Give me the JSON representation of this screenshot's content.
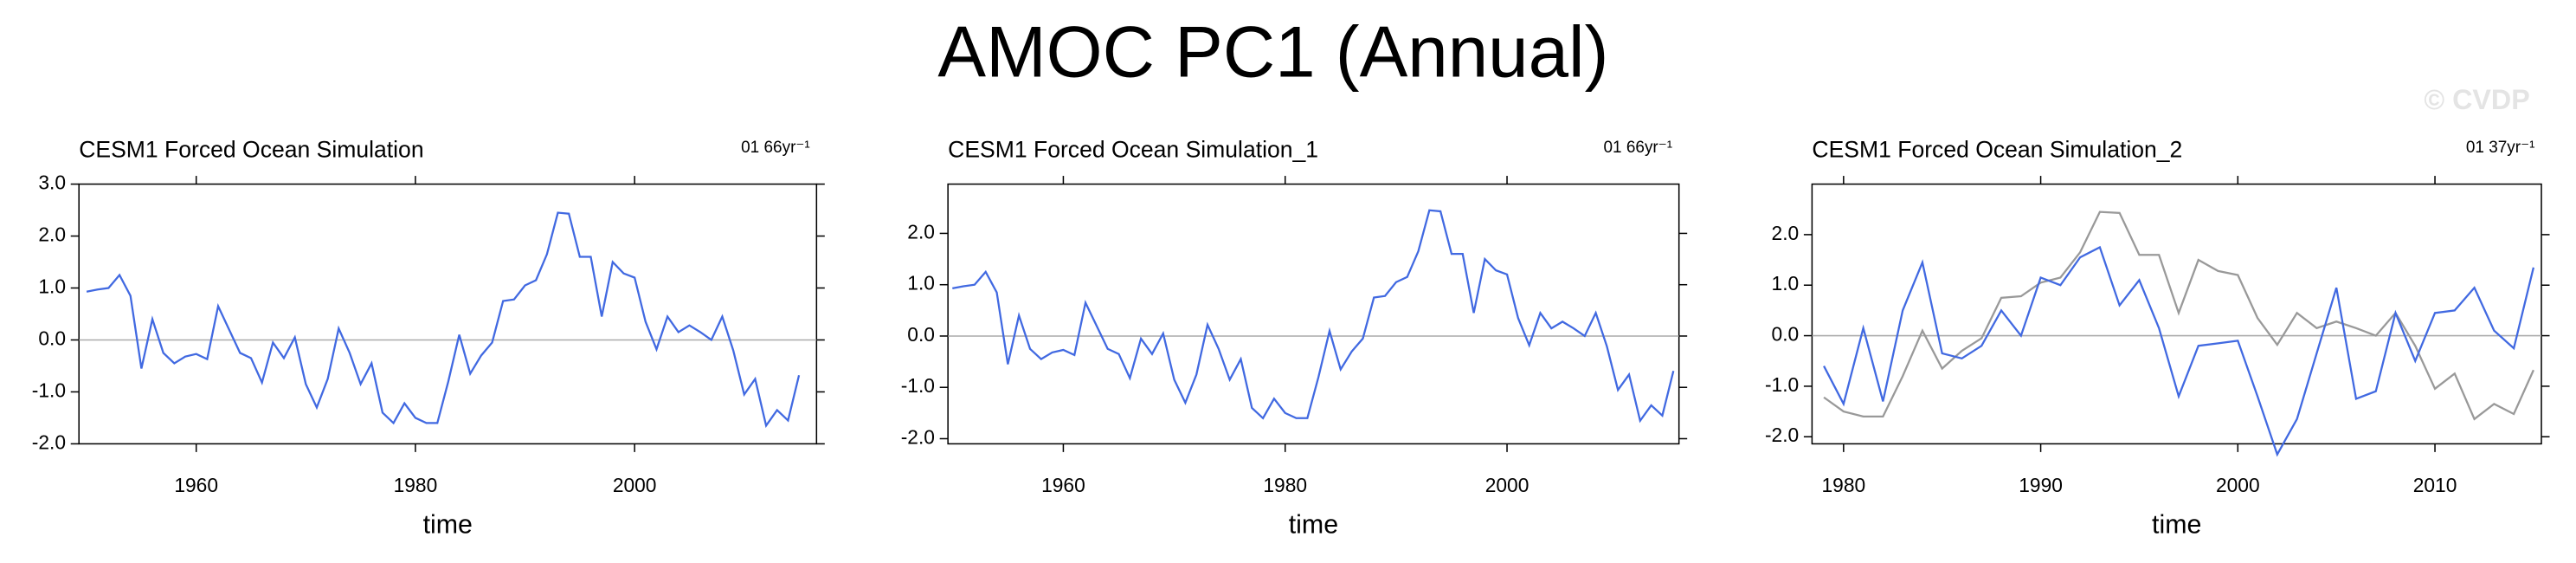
{
  "title": "AMOC PC1 (Annual)",
  "watermark": "© CVDP",
  "chart_data": [
    {
      "type": "line",
      "title": "CESM1 Forced Ocean Simulation",
      "trend_label": "01 66yr⁻¹",
      "xlabel": "time",
      "x": [
        1950,
        1951,
        1952,
        1953,
        1954,
        1955,
        1956,
        1957,
        1958,
        1959,
        1960,
        1961,
        1962,
        1963,
        1964,
        1965,
        1966,
        1967,
        1968,
        1969,
        1970,
        1971,
        1972,
        1973,
        1974,
        1975,
        1976,
        1977,
        1978,
        1979,
        1980,
        1981,
        1982,
        1983,
        1984,
        1985,
        1986,
        1987,
        1988,
        1989,
        1990,
        1991,
        1992,
        1993,
        1994,
        1995,
        1996,
        1997,
        1998,
        1999,
        2000,
        2001,
        2002,
        2003,
        2004,
        2005,
        2006,
        2007,
        2008,
        2009,
        2010,
        2011,
        2012,
        2013,
        2014,
        2015
      ],
      "series": [
        {
          "color": "#4169e1",
          "values": [
            0.93,
            0.97,
            1.0,
            1.25,
            0.85,
            -0.55,
            0.4,
            -0.25,
            -0.45,
            -0.32,
            -0.27,
            -0.37,
            0.65,
            0.2,
            -0.25,
            -0.35,
            -0.82,
            -0.05,
            -0.35,
            0.05,
            -0.85,
            -1.3,
            -0.75,
            0.22,
            -0.25,
            -0.85,
            -0.45,
            -1.4,
            -1.6,
            -1.22,
            -1.5,
            -1.6,
            -1.6,
            -0.8,
            0.1,
            -0.65,
            -0.3,
            -0.05,
            0.75,
            0.78,
            1.05,
            1.15,
            1.65,
            2.45,
            2.43,
            1.6,
            1.6,
            0.45,
            1.5,
            1.28,
            1.2,
            0.35,
            -0.18,
            0.45,
            0.15,
            0.28,
            0.15,
            0.0,
            0.45,
            -0.2,
            -1.05,
            -0.75,
            -1.65,
            -1.35,
            -1.55,
            -0.68
          ]
        }
      ],
      "xlim": [
        1949.3,
        2016.6
      ],
      "ylim": [
        -2.0,
        3.0
      ],
      "xticks": [
        1960,
        1980,
        2000
      ],
      "yticks": [
        {
          "value": 3.0,
          "label": "3.0"
        },
        {
          "value": 2.0,
          "label": "2.0"
        },
        {
          "value": 1.0,
          "label": "1.0"
        },
        {
          "value": 0,
          "label": "0.0"
        },
        {
          "value": -1.0,
          "label": "-1.0"
        },
        {
          "value": -2.0,
          "label": "-2.0"
        }
      ]
    },
    {
      "type": "line",
      "title": "CESM1 Forced Ocean Simulation_1",
      "trend_label": "01 66yr⁻¹",
      "xlabel": "time",
      "x": [
        1950,
        1951,
        1952,
        1953,
        1954,
        1955,
        1956,
        1957,
        1958,
        1959,
        1960,
        1961,
        1962,
        1963,
        1964,
        1965,
        1966,
        1967,
        1968,
        1969,
        1970,
        1971,
        1972,
        1973,
        1974,
        1975,
        1976,
        1977,
        1978,
        1979,
        1980,
        1981,
        1982,
        1983,
        1984,
        1985,
        1986,
        1987,
        1988,
        1989,
        1990,
        1991,
        1992,
        1993,
        1994,
        1995,
        1996,
        1997,
        1998,
        1999,
        2000,
        2001,
        2002,
        2003,
        2004,
        2005,
        2006,
        2007,
        2008,
        2009,
        2010,
        2011,
        2012,
        2013,
        2014,
        2015
      ],
      "series": [
        {
          "color": "#4169e1",
          "values": [
            0.93,
            0.97,
            1.0,
            1.25,
            0.85,
            -0.55,
            0.4,
            -0.25,
            -0.45,
            -0.32,
            -0.27,
            -0.37,
            0.65,
            0.2,
            -0.25,
            -0.35,
            -0.82,
            -0.05,
            -0.35,
            0.05,
            -0.85,
            -1.3,
            -0.75,
            0.22,
            -0.25,
            -0.85,
            -0.45,
            -1.4,
            -1.6,
            -1.22,
            -1.5,
            -1.6,
            -1.6,
            -0.8,
            0.1,
            -0.65,
            -0.3,
            -0.05,
            0.75,
            0.78,
            1.05,
            1.15,
            1.65,
            2.45,
            2.43,
            1.6,
            1.6,
            0.45,
            1.5,
            1.28,
            1.2,
            0.35,
            -0.18,
            0.45,
            0.15,
            0.28,
            0.15,
            0.0,
            0.45,
            -0.2,
            -1.05,
            -0.75,
            -1.65,
            -1.35,
            -1.55,
            -0.68
          ]
        }
      ],
      "xlim": [
        1949.6,
        2015.5
      ],
      "ylim": [
        -2.1,
        2.96
      ],
      "xticks": [
        1960,
        1980,
        2000
      ],
      "yticks": [
        {
          "value": 2.0,
          "label": "2.0"
        },
        {
          "value": 1.0,
          "label": "1.0"
        },
        {
          "value": 0,
          "label": "0.0"
        },
        {
          "value": -1.0,
          "label": "-1.0"
        },
        {
          "value": -2.0,
          "label": "-2.0"
        }
      ]
    },
    {
      "type": "line",
      "title": "CESM1 Forced Ocean Simulation_2",
      "trend_label": "01 37yr⁻¹",
      "xlabel": "time",
      "x": [
        1979,
        1980,
        1981,
        1982,
        1983,
        1984,
        1985,
        1986,
        1987,
        1988,
        1989,
        1990,
        1991,
        1992,
        1993,
        1994,
        1995,
        1996,
        1997,
        1998,
        1999,
        2000,
        2001,
        2002,
        2003,
        2004,
        2005,
        2006,
        2007,
        2008,
        2009,
        2010,
        2011,
        2012,
        2013,
        2014,
        2015
      ],
      "series": [
        {
          "color": "#999999",
          "values": [
            -1.22,
            -1.5,
            -1.6,
            -1.6,
            -0.8,
            0.1,
            -0.65,
            -0.3,
            -0.05,
            0.75,
            0.78,
            1.05,
            1.15,
            1.65,
            2.45,
            2.43,
            1.6,
            1.6,
            0.45,
            1.5,
            1.28,
            1.2,
            0.35,
            -0.18,
            0.45,
            0.15,
            0.28,
            0.15,
            0.0,
            0.45,
            -0.2,
            -1.05,
            -0.75,
            -1.65,
            -1.35,
            -1.55,
            -0.68
          ]
        },
        {
          "color": "#4169e1",
          "values": [
            -0.6,
            -1.35,
            0.15,
            -1.3,
            0.5,
            1.45,
            -0.35,
            -0.45,
            -0.2,
            0.5,
            0.0,
            1.15,
            1.0,
            1.55,
            1.75,
            0.6,
            1.1,
            0.15,
            -1.2,
            -0.2,
            -0.15,
            -0.1,
            -1.2,
            -2.35,
            -1.65,
            -0.35,
            0.95,
            -1.25,
            -1.1,
            0.45,
            -0.5,
            0.45,
            0.5,
            0.95,
            0.1,
            -0.25,
            1.35
          ]
        }
      ],
      "xlim": [
        1978.4,
        2015.4
      ],
      "ylim": [
        -2.14,
        3.0
      ],
      "xticks": [
        1980,
        1990,
        2000,
        2010
      ],
      "yticks": [
        {
          "value": 2.0,
          "label": "2.0"
        },
        {
          "value": 1.0,
          "label": "1.0"
        },
        {
          "value": 0,
          "label": "0.0"
        },
        {
          "value": -1.0,
          "label": "-1.0"
        },
        {
          "value": -2.0,
          "label": "-2.0"
        }
      ]
    }
  ]
}
